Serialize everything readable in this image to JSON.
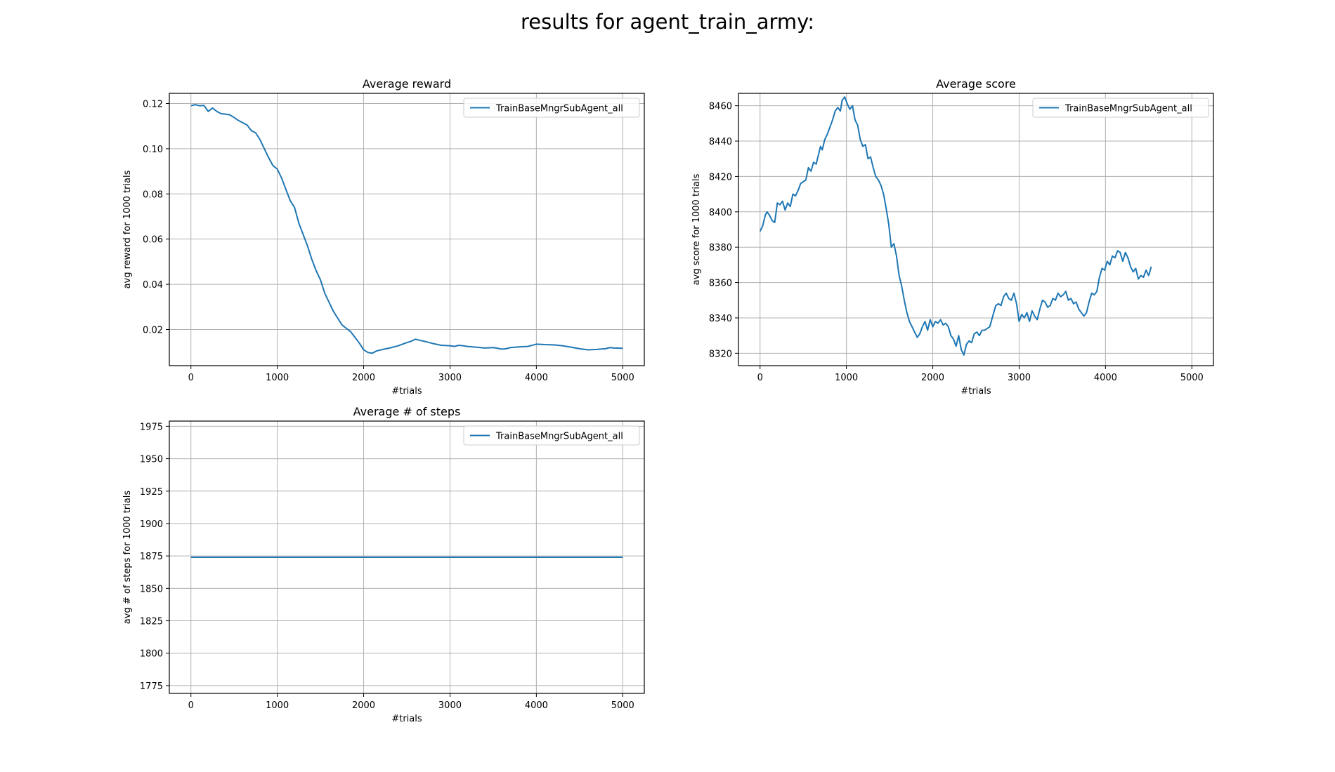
{
  "figure_title": "results for agent_train_army:",
  "chart_data": [
    {
      "type": "line",
      "title": "Average reward",
      "xlabel": "#trials",
      "ylabel": "avg reward for 1000 trials",
      "xlim": [
        -250,
        5250
      ],
      "ylim": [
        0.004,
        0.1245
      ],
      "xticks": [
        0,
        1000,
        2000,
        3000,
        4000,
        5000
      ],
      "yticks": [
        0.02,
        0.04,
        0.06,
        0.08,
        0.1,
        0.12
      ],
      "ytick_labels": [
        "0.02",
        "0.04",
        "0.06",
        "0.08",
        "0.10",
        "0.12"
      ],
      "grid": true,
      "legend_position": "upper right",
      "series": [
        {
          "name": "TrainBaseMngrSubAgent_all",
          "color": "#1f77b4",
          "points": [
            [
              0,
              0.119
            ],
            [
              50,
              0.1195
            ],
            [
              100,
              0.119
            ],
            [
              150,
              0.1192
            ],
            [
              200,
              0.1165
            ],
            [
              250,
              0.118
            ],
            [
              300,
              0.1165
            ],
            [
              350,
              0.1155
            ],
            [
              400,
              0.1153
            ],
            [
              450,
              0.115
            ],
            [
              500,
              0.1138
            ],
            [
              550,
              0.1125
            ],
            [
              600,
              0.1115
            ],
            [
              650,
              0.1105
            ],
            [
              700,
              0.108
            ],
            [
              750,
              0.107
            ],
            [
              800,
              0.104
            ],
            [
              850,
              0.1
            ],
            [
              900,
              0.096
            ],
            [
              950,
              0.0925
            ],
            [
              1000,
              0.091
            ],
            [
              1050,
              0.087
            ],
            [
              1100,
              0.082
            ],
            [
              1150,
              0.077
            ],
            [
              1200,
              0.074
            ],
            [
              1250,
              0.067
            ],
            [
              1300,
              0.062
            ],
            [
              1350,
              0.057
            ],
            [
              1400,
              0.051
            ],
            [
              1450,
              0.046
            ],
            [
              1500,
              0.042
            ],
            [
              1550,
              0.036
            ],
            [
              1600,
              0.032
            ],
            [
              1650,
              0.028
            ],
            [
              1700,
              0.025
            ],
            [
              1750,
              0.022
            ],
            [
              1800,
              0.0205
            ],
            [
              1850,
              0.019
            ],
            [
              1900,
              0.0165
            ],
            [
              1950,
              0.014
            ],
            [
              2000,
              0.011
            ],
            [
              2050,
              0.0098
            ],
            [
              2100,
              0.0095
            ],
            [
              2150,
              0.0105
            ],
            [
              2200,
              0.011
            ],
            [
              2300,
              0.0118
            ],
            [
              2400,
              0.0128
            ],
            [
              2500,
              0.0142
            ],
            [
              2550,
              0.0148
            ],
            [
              2600,
              0.0157
            ],
            [
              2650,
              0.0152
            ],
            [
              2700,
              0.0148
            ],
            [
              2800,
              0.0138
            ],
            [
              2900,
              0.013
            ],
            [
              3000,
              0.0128
            ],
            [
              3050,
              0.0125
            ],
            [
              3100,
              0.013
            ],
            [
              3150,
              0.0128
            ],
            [
              3200,
              0.0125
            ],
            [
              3300,
              0.0122
            ],
            [
              3400,
              0.0118
            ],
            [
              3500,
              0.012
            ],
            [
              3550,
              0.0117
            ],
            [
              3600,
              0.0113
            ],
            [
              3650,
              0.0115
            ],
            [
              3700,
              0.012
            ],
            [
              3800,
              0.0123
            ],
            [
              3900,
              0.0125
            ],
            [
              4000,
              0.0135
            ],
            [
              4100,
              0.0133
            ],
            [
              4200,
              0.0132
            ],
            [
              4300,
              0.0128
            ],
            [
              4400,
              0.0122
            ],
            [
              4500,
              0.0115
            ],
            [
              4600,
              0.011
            ],
            [
              4700,
              0.0112
            ],
            [
              4800,
              0.0115
            ],
            [
              4850,
              0.012
            ],
            [
              4900,
              0.0118
            ],
            [
              5000,
              0.0117
            ]
          ]
        }
      ]
    },
    {
      "type": "line",
      "title": "Average score",
      "xlabel": "#trials",
      "ylabel": "avg score for 1000 trials",
      "xlim": [
        -250,
        5250
      ],
      "ylim": [
        8313,
        8467
      ],
      "xticks": [
        0,
        1000,
        2000,
        3000,
        4000,
        5000
      ],
      "yticks": [
        8320,
        8340,
        8360,
        8380,
        8400,
        8420,
        8440,
        8460
      ],
      "ytick_labels": [
        "8320",
        "8340",
        "8360",
        "8380",
        "8400",
        "8420",
        "8440",
        "8460"
      ],
      "grid": true,
      "legend_position": "upper right",
      "series": [
        {
          "name": "TrainBaseMngrSubAgent_all",
          "color": "#1f77b4",
          "points": [
            [
              0,
              8389
            ],
            [
              30,
              8392
            ],
            [
              60,
              8398
            ],
            [
              80,
              8400
            ],
            [
              110,
              8398
            ],
            [
              140,
              8395
            ],
            [
              170,
              8394
            ],
            [
              200,
              8405
            ],
            [
              230,
              8404
            ],
            [
              260,
              8406
            ],
            [
              290,
              8401
            ],
            [
              320,
              8405
            ],
            [
              350,
              8403
            ],
            [
              380,
              8410
            ],
            [
              410,
              8409
            ],
            [
              440,
              8412
            ],
            [
              470,
              8416
            ],
            [
              500,
              8417
            ],
            [
              530,
              8418
            ],
            [
              560,
              8425
            ],
            [
              590,
              8423
            ],
            [
              620,
              8428
            ],
            [
              650,
              8427
            ],
            [
              680,
              8433
            ],
            [
              700,
              8437
            ],
            [
              720,
              8435
            ],
            [
              750,
              8441
            ],
            [
              780,
              8444
            ],
            [
              810,
              8448
            ],
            [
              840,
              8452
            ],
            [
              870,
              8457
            ],
            [
              900,
              8459
            ],
            [
              930,
              8457
            ],
            [
              950,
              8463
            ],
            [
              980,
              8465
            ],
            [
              1010,
              8461
            ],
            [
              1040,
              8458
            ],
            [
              1070,
              8460
            ],
            [
              1100,
              8452
            ],
            [
              1130,
              8449
            ],
            [
              1160,
              8441
            ],
            [
              1190,
              8437
            ],
            [
              1220,
              8438
            ],
            [
              1250,
              8430
            ],
            [
              1280,
              8431
            ],
            [
              1310,
              8425
            ],
            [
              1340,
              8420
            ],
            [
              1370,
              8418
            ],
            [
              1400,
              8415
            ],
            [
              1430,
              8410
            ],
            [
              1460,
              8402
            ],
            [
              1490,
              8393
            ],
            [
              1520,
              8380
            ],
            [
              1550,
              8382
            ],
            [
              1580,
              8375
            ],
            [
              1610,
              8364
            ],
            [
              1640,
              8358
            ],
            [
              1670,
              8350
            ],
            [
              1700,
              8343
            ],
            [
              1730,
              8338
            ],
            [
              1760,
              8335
            ],
            [
              1790,
              8332
            ],
            [
              1820,
              8329
            ],
            [
              1850,
              8331
            ],
            [
              1880,
              8335
            ],
            [
              1910,
              8338
            ],
            [
              1940,
              8333
            ],
            [
              1970,
              8339
            ],
            [
              2000,
              8335
            ],
            [
              2030,
              8338
            ],
            [
              2060,
              8337
            ],
            [
              2090,
              8339
            ],
            [
              2120,
              8336
            ],
            [
              2150,
              8337
            ],
            [
              2180,
              8335
            ],
            [
              2210,
              8330
            ],
            [
              2240,
              8328
            ],
            [
              2270,
              8324
            ],
            [
              2300,
              8330
            ],
            [
              2330,
              8322
            ],
            [
              2360,
              8319
            ],
            [
              2390,
              8325
            ],
            [
              2420,
              8327
            ],
            [
              2450,
              8326
            ],
            [
              2480,
              8331
            ],
            [
              2510,
              8332
            ],
            [
              2540,
              8330
            ],
            [
              2570,
              8333
            ],
            [
              2600,
              8333
            ],
            [
              2630,
              8334
            ],
            [
              2660,
              8335
            ],
            [
              2700,
              8342
            ],
            [
              2730,
              8347
            ],
            [
              2760,
              8348
            ],
            [
              2790,
              8347
            ],
            [
              2820,
              8352
            ],
            [
              2850,
              8354
            ],
            [
              2880,
              8351
            ],
            [
              2910,
              8350
            ],
            [
              2940,
              8354
            ],
            [
              2970,
              8348
            ],
            [
              3000,
              8338
            ],
            [
              3030,
              8342
            ],
            [
              3060,
              8340
            ],
            [
              3090,
              8343
            ],
            [
              3120,
              8338
            ],
            [
              3150,
              8344
            ],
            [
              3180,
              8341
            ],
            [
              3210,
              8339
            ],
            [
              3240,
              8345
            ],
            [
              3270,
              8350
            ],
            [
              3300,
              8349
            ],
            [
              3330,
              8346
            ],
            [
              3360,
              8347
            ],
            [
              3390,
              8351
            ],
            [
              3420,
              8350
            ],
            [
              3450,
              8354
            ],
            [
              3480,
              8352
            ],
            [
              3510,
              8353
            ],
            [
              3540,
              8355
            ],
            [
              3570,
              8350
            ],
            [
              3600,
              8351
            ],
            [
              3630,
              8348
            ],
            [
              3660,
              8349
            ],
            [
              3690,
              8345
            ],
            [
              3720,
              8343
            ],
            [
              3750,
              8341
            ],
            [
              3780,
              8343
            ],
            [
              3810,
              8349
            ],
            [
              3840,
              8354
            ],
            [
              3870,
              8353
            ],
            [
              3900,
              8355
            ],
            [
              3930,
              8363
            ],
            [
              3960,
              8368
            ],
            [
              3990,
              8367
            ],
            [
              4020,
              8372
            ],
            [
              4050,
              8370
            ],
            [
              4080,
              8375
            ],
            [
              4110,
              8374
            ],
            [
              4140,
              8378
            ],
            [
              4170,
              8377
            ],
            [
              4200,
              8372
            ],
            [
              4230,
              8377
            ],
            [
              4260,
              8374
            ],
            [
              4290,
              8369
            ],
            [
              4320,
              8366
            ],
            [
              4350,
              8368
            ],
            [
              4380,
              8362
            ],
            [
              4410,
              8364
            ],
            [
              4440,
              8363
            ],
            [
              4470,
              8367
            ],
            [
              4500,
              8364
            ],
            [
              4530,
              8369
            ]
          ]
        }
      ]
    },
    {
      "type": "line",
      "title": "Average # of steps",
      "xlabel": "#trials",
      "ylabel": "avg # of steps for 1000 trials",
      "xlim": [
        -250,
        5250
      ],
      "ylim": [
        1769,
        1979
      ],
      "xticks": [
        0,
        1000,
        2000,
        3000,
        4000,
        5000
      ],
      "yticks": [
        1775,
        1800,
        1825,
        1850,
        1875,
        1900,
        1925,
        1950,
        1975
      ],
      "ytick_labels": [
        "1775",
        "1800",
        "1825",
        "1850",
        "1875",
        "1900",
        "1925",
        "1950",
        "1975"
      ],
      "grid": true,
      "legend_position": "upper right",
      "series": [
        {
          "name": "TrainBaseMngrSubAgent_all",
          "color": "#1f77b4",
          "points": [
            [
              0,
              1874
            ],
            [
              5000,
              1874
            ]
          ]
        }
      ]
    }
  ]
}
